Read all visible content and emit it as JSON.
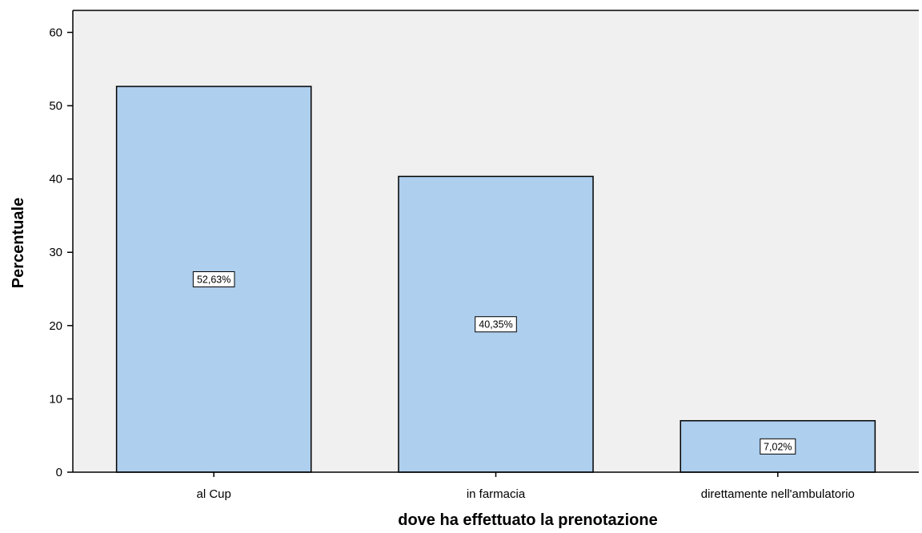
{
  "chart_data": {
    "type": "bar",
    "title": "",
    "xlabel": "dove ha effettuato la prenotazione",
    "ylabel": "Percentuale",
    "categories": [
      "al Cup",
      "in farmacia",
      "direttamente nell'ambulatorio"
    ],
    "values": [
      52.63,
      40.35,
      7.02
    ],
    "data_labels": [
      "52,63%",
      "40,35%",
      "7,02%"
    ],
    "ylim": [
      0,
      63
    ],
    "yticks": [
      0,
      10,
      20,
      30,
      40,
      50,
      60
    ],
    "grid": false,
    "legend": "none",
    "colors": {
      "bar_fill": "#aecfee",
      "bar_stroke": "#000000",
      "plot_background": "#f0f0f0",
      "label_box_fill": "#ffffff"
    }
  }
}
